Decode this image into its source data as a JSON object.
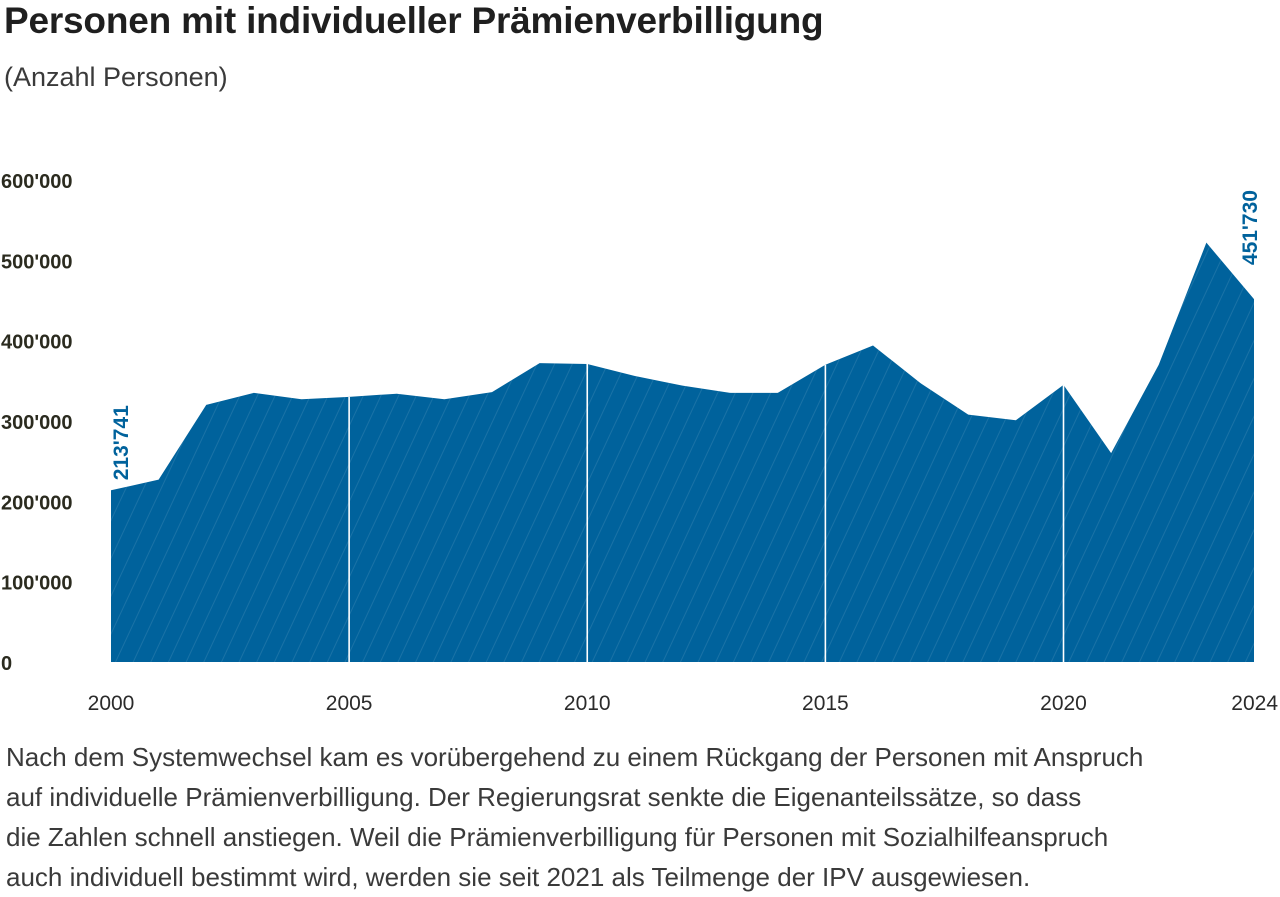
{
  "title": "Personen mit individueller Prämienverbilligung",
  "subtitle": "(Anzahl Personen)",
  "colors": {
    "area": "#00629c",
    "label": "#00629c",
    "divider": "#ffffff",
    "text": "#2b2b2b"
  },
  "chart_data": {
    "type": "area",
    "x": [
      2000,
      2001,
      2002,
      2003,
      2004,
      2005,
      2006,
      2007,
      2008,
      2009,
      2010,
      2011,
      2012,
      2013,
      2014,
      2015,
      2016,
      2017,
      2018,
      2019,
      2020,
      2021,
      2022,
      2023,
      2024
    ],
    "values": [
      213741,
      227000,
      320000,
      335000,
      327000,
      330000,
      334000,
      327000,
      336000,
      372000,
      371000,
      356000,
      344000,
      335000,
      335000,
      370000,
      394000,
      347000,
      308000,
      301000,
      345000,
      260000,
      370000,
      522000,
      451730
    ],
    "ylim": [
      0,
      600000
    ],
    "yticks": [
      0,
      100000,
      200000,
      300000,
      400000,
      500000,
      600000
    ],
    "ytick_labels": [
      "0",
      "100'000",
      "200'000",
      "300'000",
      "400'000",
      "500'000",
      "600'000"
    ],
    "xticks": [
      2000,
      2005,
      2010,
      2015,
      2020,
      2024
    ],
    "xtick_labels": [
      "2000",
      "2005",
      "2010",
      "2015",
      "2020",
      "2024"
    ],
    "dividers": [
      2005,
      2010,
      2015,
      2020
    ],
    "annotations": [
      {
        "x": 2000,
        "text": "213'741"
      },
      {
        "x": 2024,
        "text": "451'730"
      }
    ],
    "grid": false,
    "legend": "none"
  },
  "caption": {
    "lines": [
      "Nach dem Systemwechsel kam es vorübergehend zu einem Rückgang der Personen mit Anspruch",
      "auf individuelle Prämienverbilligung. Der Regierungsrat senkte die Eigenanteilssätze, so dass",
      "die Zahlen schnell anstiegen. Weil die Prämienverbilligung für Personen mit Sozialhilfeanspruch",
      "auch individuell bestimmt wird, werden sie seit 2021 als Teilmenge der IPV ausgewiesen."
    ]
  }
}
